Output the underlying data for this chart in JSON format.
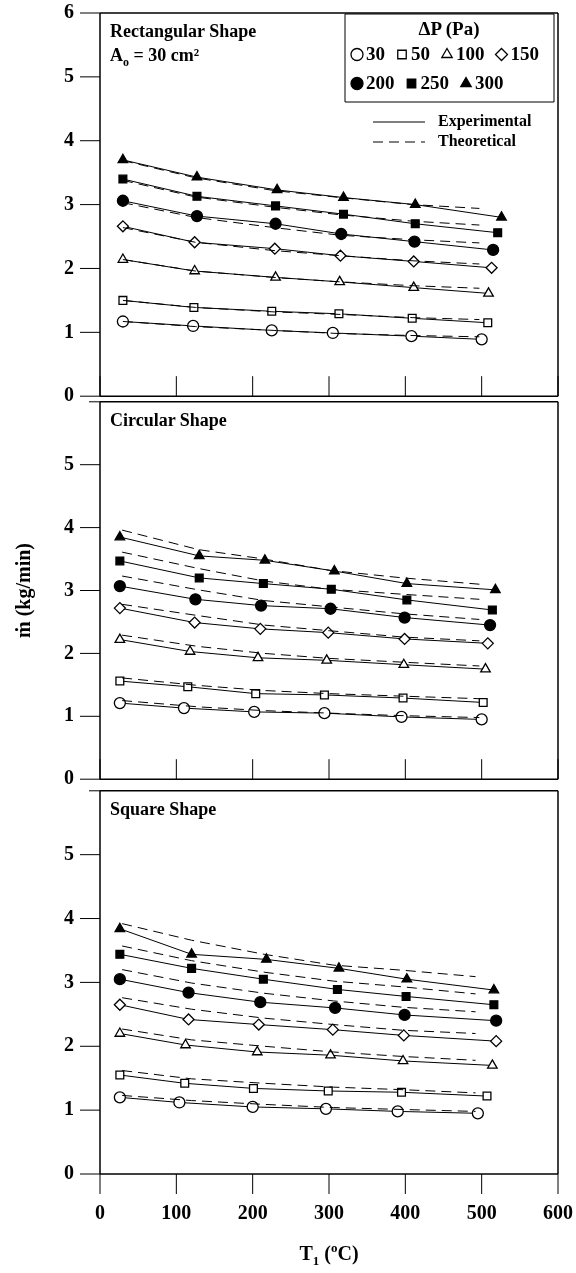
{
  "chart_data": [
    {
      "type": "line",
      "title": "Rectangular Shape",
      "subtitle": "A$_{o}$ = 30 cm²",
      "legend": "top right",
      "legend_title": "ΔP (Pa)",
      "annotations": [
        "Experimental",
        "Theoretical"
      ],
      "tick_labels": "y",
      "xlim": [
        0,
        600
      ],
      "ylim": [
        0,
        6
      ],
      "xticks": [
        0,
        100,
        200,
        300,
        400,
        500,
        600
      ],
      "yticks": [
        0,
        1,
        2,
        3,
        4,
        5,
        6
      ],
      "series": [
        {
          "name": "30",
          "marker": "circle",
          "colors": [
            "#ffffff",
            "#ffffff",
            "#ffffff",
            "#ffffff",
            "#ffffff",
            "#ffffff"
          ],
          "line_style": "solid",
          "color": "#000000",
          "x": [
            30,
            122,
            225,
            305,
            408,
            500
          ],
          "values": [
            1.17,
            1.1,
            1.03,
            0.99,
            0.94,
            0.89
          ]
        },
        {
          "name": "50",
          "marker": "square",
          "colors": [
            "#ffffff",
            "#ffffff",
            "#ffffff",
            "#ffffff",
            "#ffffff",
            "#ffffff"
          ],
          "line_style": "solid",
          "color": "#000000",
          "x": [
            30,
            123,
            225,
            313,
            409,
            508
          ],
          "values": [
            1.5,
            1.39,
            1.33,
            1.29,
            1.22,
            1.15
          ]
        },
        {
          "name": "100",
          "marker": "triangle",
          "colors": [
            "#ffffff",
            "#ffffff",
            "#ffffff",
            "#ffffff",
            "#ffffff",
            "#ffffff"
          ],
          "line_style": "solid",
          "color": "#000000",
          "x": [
            30,
            124,
            230,
            314,
            411,
            509
          ],
          "values": [
            2.14,
            1.96,
            1.86,
            1.79,
            1.7,
            1.61
          ]
        },
        {
          "name": "150",
          "marker": "diamond",
          "colors": [
            "#ffffff",
            "#ffffff",
            "#ffffff",
            "#ffffff",
            "#ffffff",
            "#ffffff"
          ],
          "line_style": "solid",
          "color": "#000000",
          "x": [
            30,
            124,
            229,
            315,
            411,
            513
          ],
          "values": [
            2.66,
            2.41,
            2.31,
            2.2,
            2.11,
            2.01
          ]
        },
        {
          "name": "200",
          "marker": "circle",
          "line_style": "solid",
          "color": "#000000",
          "x": [
            30,
            127,
            230,
            316,
            412,
            515
          ],
          "values": [
            3.06,
            2.82,
            2.7,
            2.54,
            2.42,
            2.29
          ]
        },
        {
          "name": "250",
          "marker": "square",
          "line_style": "solid",
          "color": "#000000",
          "x": [
            30,
            127,
            230,
            319,
            413,
            521
          ],
          "values": [
            3.4,
            3.13,
            2.98,
            2.85,
            2.7,
            2.56
          ]
        },
        {
          "name": "300",
          "marker": "triangle",
          "line_style": "solid",
          "color": "#000000",
          "x": [
            30,
            127,
            232,
            319,
            413,
            526
          ],
          "values": [
            3.7,
            3.43,
            3.23,
            3.11,
            3.0,
            2.8
          ]
        },
        {
          "marker": "none",
          "line_style": "dashed",
          "color": "#000000",
          "x": [
            30,
            125,
            228,
            315,
            410,
            497
          ],
          "values": [
            1.17,
            1.09,
            1.03,
            0.98,
            0.95,
            0.93
          ]
        },
        {
          "marker": "none",
          "line_style": "dashed",
          "color": "#000000",
          "x": [
            30,
            125,
            228,
            315,
            410,
            497
          ],
          "values": [
            1.5,
            1.39,
            1.32,
            1.28,
            1.23,
            1.2
          ]
        },
        {
          "marker": "none",
          "line_style": "dashed",
          "color": "#000000",
          "x": [
            30,
            125,
            228,
            315,
            410,
            497
          ],
          "values": [
            2.14,
            1.96,
            1.86,
            1.79,
            1.73,
            1.69
          ]
        },
        {
          "marker": "none",
          "line_style": "dashed",
          "color": "#000000",
          "x": [
            30,
            125,
            228,
            315,
            410,
            497
          ],
          "values": [
            2.64,
            2.41,
            2.28,
            2.2,
            2.12,
            2.07
          ]
        },
        {
          "marker": "none",
          "line_style": "dashed",
          "color": "#000000",
          "x": [
            30,
            125,
            228,
            315,
            410,
            497
          ],
          "values": [
            3.03,
            2.8,
            2.64,
            2.52,
            2.45,
            2.4
          ]
        },
        {
          "marker": "none",
          "line_style": "dashed",
          "color": "#000000",
          "x": [
            30,
            125,
            228,
            315,
            410,
            497
          ],
          "values": [
            3.38,
            3.12,
            2.96,
            2.84,
            2.74,
            2.68
          ]
        },
        {
          "marker": "none",
          "line_style": "dashed",
          "color": "#000000",
          "x": [
            30,
            125,
            228,
            315,
            410,
            497
          ],
          "values": [
            3.69,
            3.42,
            3.22,
            3.11,
            3.0,
            2.94
          ]
        }
      ]
    },
    {
      "type": "line",
      "title": "Circular Shape",
      "ylabel": "ṁ (kg/min)",
      "tick_labels": "y",
      "xlim": [
        0,
        600
      ],
      "ylim": [
        0,
        6
      ],
      "xticks": [
        0,
        100,
        200,
        300,
        400,
        500,
        600
      ],
      "yticks": [
        0,
        1,
        2,
        3,
        4,
        5,
        {
          "value": 6,
          "label": null
        }
      ],
      "series": [
        {
          "marker": "circle",
          "colors": [
            "#ffffff",
            "#ffffff",
            "#ffffff",
            "#ffffff",
            "#ffffff",
            "#ffffff"
          ],
          "line_style": "solid",
          "color": "#000000",
          "x": [
            26,
            110,
            202,
            294,
            395,
            500
          ],
          "values": [
            1.21,
            1.13,
            1.07,
            1.05,
            0.99,
            0.95
          ]
        },
        {
          "marker": "square",
          "colors": [
            "#ffffff",
            "#ffffff",
            "#ffffff",
            "#ffffff",
            "#ffffff",
            "#ffffff"
          ],
          "line_style": "solid",
          "color": "#000000",
          "x": [
            26,
            115,
            204,
            294,
            397,
            502
          ],
          "values": [
            1.56,
            1.47,
            1.36,
            1.34,
            1.29,
            1.22
          ]
        },
        {
          "marker": "triangle",
          "colors": [
            "#ffffff",
            "#ffffff",
            "#ffffff",
            "#ffffff",
            "#ffffff",
            "#ffffff"
          ],
          "line_style": "solid",
          "color": "#000000",
          "x": [
            26,
            118,
            207,
            297,
            398,
            505
          ],
          "values": [
            2.22,
            2.03,
            1.93,
            1.89,
            1.82,
            1.75
          ]
        },
        {
          "marker": "diamond",
          "colors": [
            "#ffffff",
            "#ffffff",
            "#ffffff",
            "#ffffff",
            "#ffffff",
            "#ffffff"
          ],
          "line_style": "solid",
          "color": "#000000",
          "x": [
            26,
            124,
            210,
            299,
            399,
            508
          ],
          "values": [
            2.72,
            2.49,
            2.39,
            2.33,
            2.23,
            2.16
          ]
        },
        {
          "marker": "circle",
          "line_style": "solid",
          "color": "#000000",
          "x": [
            26,
            125,
            211,
            302,
            399,
            511
          ],
          "values": [
            3.07,
            2.86,
            2.76,
            2.71,
            2.57,
            2.45
          ]
        },
        {
          "marker": "square",
          "line_style": "solid",
          "color": "#000000",
          "x": [
            26,
            130,
            214,
            303,
            402,
            514
          ],
          "values": [
            3.47,
            3.2,
            3.11,
            3.02,
            2.85,
            2.69
          ]
        },
        {
          "marker": "triangle",
          "line_style": "solid",
          "color": "#000000",
          "x": [
            26,
            130,
            216,
            307,
            402,
            518
          ],
          "values": [
            3.85,
            3.55,
            3.48,
            3.31,
            3.11,
            3.01
          ]
        },
        {
          "marker": "none",
          "line_style": "dashed",
          "color": "#000000",
          "x": [
            29,
            129,
            215,
            301,
            397,
            497
          ],
          "values": [
            1.25,
            1.15,
            1.09,
            1.05,
            1.01,
            0.98
          ]
        },
        {
          "marker": "none",
          "line_style": "dashed",
          "color": "#000000",
          "x": [
            29,
            129,
            215,
            301,
            397,
            497
          ],
          "values": [
            1.61,
            1.49,
            1.41,
            1.36,
            1.32,
            1.28
          ]
        },
        {
          "marker": "none",
          "line_style": "dashed",
          "color": "#000000",
          "x": [
            29,
            129,
            215,
            301,
            397,
            497
          ],
          "values": [
            2.29,
            2.11,
            2.0,
            1.92,
            1.86,
            1.8
          ]
        },
        {
          "marker": "none",
          "line_style": "dashed",
          "color": "#000000",
          "x": [
            29,
            129,
            215,
            301,
            397,
            497
          ],
          "values": [
            2.78,
            2.6,
            2.45,
            2.36,
            2.26,
            2.2
          ]
        },
        {
          "marker": "none",
          "line_style": "dashed",
          "color": "#000000",
          "x": [
            29,
            129,
            215,
            301,
            397,
            497
          ],
          "values": [
            3.23,
            3.01,
            2.84,
            2.74,
            2.63,
            2.54
          ]
        },
        {
          "marker": "none",
          "line_style": "dashed",
          "color": "#000000",
          "x": [
            29,
            129,
            215,
            301,
            397,
            497
          ],
          "values": [
            3.61,
            3.35,
            3.15,
            3.02,
            2.94,
            2.86
          ]
        },
        {
          "marker": "none",
          "line_style": "dashed",
          "color": "#000000",
          "x": [
            29,
            129,
            215,
            301,
            397,
            497
          ],
          "values": [
            3.96,
            3.65,
            3.5,
            3.32,
            3.2,
            3.1
          ]
        }
      ]
    },
    {
      "type": "line",
      "title": "Square Shape",
      "xlabel": "T$_{1}$ ($^{o}$C)",
      "xlim": [
        0,
        600
      ],
      "ylim": [
        0,
        6
      ],
      "xticks": [
        0,
        100,
        200,
        300,
        400,
        500,
        600
      ],
      "yticks": [
        0,
        1,
        2,
        3,
        4,
        5,
        {
          "value": 6,
          "label": null
        }
      ],
      "series": [
        {
          "marker": "circle",
          "colors": [
            "#ffffff",
            "#ffffff",
            "#ffffff",
            "#ffffff",
            "#ffffff",
            "#ffffff"
          ],
          "line_style": "solid",
          "color": "#000000",
          "x": [
            26,
            104,
            200,
            296,
            390,
            495
          ],
          "values": [
            1.2,
            1.12,
            1.05,
            1.02,
            0.98,
            0.95
          ]
        },
        {
          "marker": "square",
          "colors": [
            "#ffffff",
            "#ffffff",
            "#ffffff",
            "#ffffff",
            "#ffffff",
            "#ffffff"
          ],
          "line_style": "solid",
          "color": "#000000",
          "x": [
            26,
            111,
            201,
            299,
            395,
            507
          ],
          "values": [
            1.55,
            1.42,
            1.34,
            1.3,
            1.28,
            1.22
          ]
        },
        {
          "marker": "triangle",
          "colors": [
            "#ffffff",
            "#ffffff",
            "#ffffff",
            "#ffffff",
            "#ffffff",
            "#ffffff"
          ],
          "line_style": "solid",
          "color": "#000000",
          "x": [
            26,
            112,
            206,
            302,
            397,
            514
          ],
          "values": [
            2.2,
            2.02,
            1.91,
            1.86,
            1.77,
            1.7
          ]
        },
        {
          "marker": "diamond",
          "colors": [
            "#ffffff",
            "#ffffff",
            "#ffffff",
            "#ffffff",
            "#ffffff",
            "#ffffff"
          ],
          "line_style": "solid",
          "color": "#000000",
          "x": [
            26,
            116,
            208,
            305,
            398,
            519
          ],
          "values": [
            2.65,
            2.42,
            2.34,
            2.26,
            2.17,
            2.08
          ]
        },
        {
          "marker": "circle",
          "line_style": "solid",
          "color": "#000000",
          "x": [
            26,
            116,
            210,
            308,
            399,
            519
          ],
          "values": [
            3.05,
            2.84,
            2.69,
            2.6,
            2.49,
            2.4
          ]
        },
        {
          "marker": "square",
          "line_style": "solid",
          "color": "#000000",
          "x": [
            26,
            120,
            214,
            311,
            401,
            516
          ],
          "values": [
            3.44,
            3.22,
            3.05,
            2.89,
            2.78,
            2.65
          ]
        },
        {
          "marker": "triangle",
          "line_style": "solid",
          "color": "#000000",
          "x": [
            26,
            120,
            218,
            313,
            402,
            516
          ],
          "values": [
            3.84,
            3.44,
            3.36,
            3.22,
            3.05,
            2.88
          ]
        },
        {
          "marker": "none",
          "line_style": "dashed",
          "color": "#000000",
          "x": [
            29,
            120,
            215,
            306,
            397,
            492
          ],
          "values": [
            1.23,
            1.15,
            1.09,
            1.04,
            1.01,
            0.98
          ]
        },
        {
          "marker": "none",
          "line_style": "dashed",
          "color": "#000000",
          "x": [
            29,
            120,
            215,
            306,
            397,
            492
          ],
          "values": [
            1.62,
            1.49,
            1.42,
            1.36,
            1.32,
            1.27
          ]
        },
        {
          "marker": "none",
          "line_style": "dashed",
          "color": "#000000",
          "x": [
            29,
            120,
            215,
            306,
            397,
            492
          ],
          "values": [
            2.27,
            2.1,
            2.0,
            1.91,
            1.84,
            1.78
          ]
        },
        {
          "marker": "none",
          "line_style": "dashed",
          "color": "#000000",
          "x": [
            29,
            120,
            215,
            306,
            397,
            492
          ],
          "values": [
            2.76,
            2.58,
            2.44,
            2.34,
            2.25,
            2.2
          ]
        },
        {
          "marker": "none",
          "line_style": "dashed",
          "color": "#000000",
          "x": [
            29,
            120,
            215,
            306,
            397,
            492
          ],
          "values": [
            3.2,
            2.99,
            2.83,
            2.71,
            2.61,
            2.54
          ]
        },
        {
          "marker": "none",
          "line_style": "dashed",
          "color": "#000000",
          "x": [
            29,
            120,
            215,
            306,
            397,
            492
          ],
          "values": [
            3.57,
            3.34,
            3.16,
            3.02,
            2.93,
            2.82
          ]
        },
        {
          "marker": "none",
          "line_style": "dashed",
          "color": "#000000",
          "x": [
            29,
            120,
            215,
            306,
            397,
            492
          ],
          "values": [
            3.92,
            3.66,
            3.44,
            3.27,
            3.19,
            3.09
          ]
        }
      ]
    }
  ]
}
